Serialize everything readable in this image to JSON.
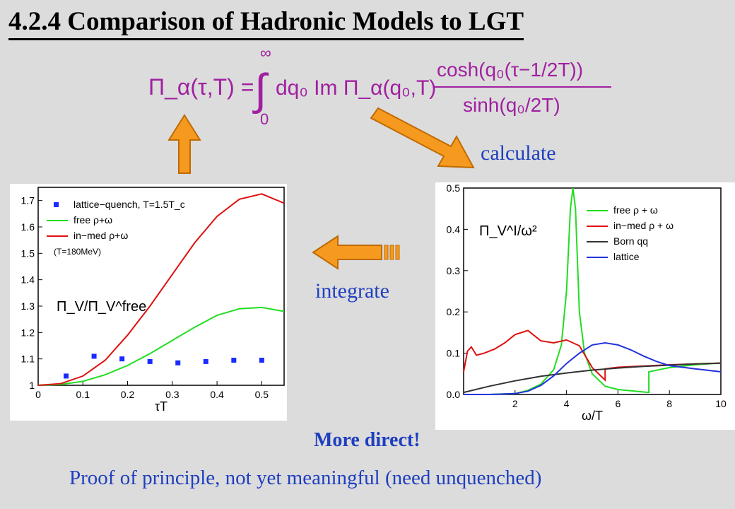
{
  "title": "4.2.4 Comparison of Hadronic Models to LGT",
  "formula": {
    "lhs": "Π_α(τ,T) =",
    "integral_upper": "∞",
    "integral_lower": "0",
    "integrand": "dq₀ Im Π_α(q₀,T)",
    "numerator": "cosh(q₀(τ−1/2T))",
    "denominator": "sinh(q₀/2T)"
  },
  "labels": {
    "calculate": "calculate",
    "integrate": "integrate",
    "more_direct": "More direct!",
    "proof": "Proof of principle, not yet meaningful  (need unquenched)"
  },
  "colors": {
    "arrow": "#f59a1e",
    "accent_text": "#1f3fbf",
    "formula": "#a020a0"
  },
  "chart_data": [
    {
      "type": "line",
      "ylabel": "Π_V/Π_V^free",
      "xlabel": "τT",
      "xlim": [
        0,
        0.55
      ],
      "ylim": [
        1,
        1.75
      ],
      "xticks": [
        "0",
        "0.1",
        "0.2",
        "0.3",
        "0.4",
        "0.5"
      ],
      "xtick_values": [
        0,
        0.1,
        0.2,
        0.3,
        0.4,
        0.5
      ],
      "yticks": [
        "1",
        "1.1",
        "1.2",
        "1.3",
        "1.4",
        "1.5",
        "1.6",
        "1.7"
      ],
      "ytick_values": [
        1,
        1.1,
        1.2,
        1.3,
        1.4,
        1.5,
        1.6,
        1.7
      ],
      "legend": [
        "lattice−quench, T=1.5T_c",
        "free ρ+ω",
        "in−med ρ+ω"
      ],
      "legend_note": "(T=180MeV)",
      "series": [
        {
          "name": "lattice−quench, T=1.5T_c",
          "kind": "points",
          "color": "#1a2bff",
          "x": [
            0.0625,
            0.125,
            0.1875,
            0.25,
            0.3125,
            0.375,
            0.4375,
            0.5
          ],
          "y": [
            1.035,
            1.11,
            1.1,
            1.09,
            1.085,
            1.09,
            1.095,
            1.095
          ]
        },
        {
          "name": "free ρ+ω",
          "kind": "line",
          "color": "#22dd22",
          "x": [
            0,
            0.05,
            0.1,
            0.15,
            0.2,
            0.25,
            0.3,
            0.35,
            0.4,
            0.45,
            0.5,
            0.55
          ],
          "y": [
            1,
            1.003,
            1.015,
            1.04,
            1.075,
            1.12,
            1.17,
            1.22,
            1.265,
            1.29,
            1.295,
            1.28
          ]
        },
        {
          "name": "in−med ρ+ω",
          "kind": "line",
          "color": "#e01010",
          "x": [
            0,
            0.05,
            0.1,
            0.15,
            0.2,
            0.25,
            0.3,
            0.35,
            0.4,
            0.45,
            0.5,
            0.55
          ],
          "y": [
            1,
            1.006,
            1.035,
            1.095,
            1.19,
            1.3,
            1.42,
            1.54,
            1.64,
            1.705,
            1.725,
            1.69
          ]
        }
      ]
    },
    {
      "type": "line",
      "ylabel": "Π_V^I/ω²",
      "xlabel": "ω/T",
      "xlim": [
        0,
        10
      ],
      "ylim": [
        0,
        0.5
      ],
      "xticks": [
        "2",
        "4",
        "6",
        "8",
        "10"
      ],
      "xtick_values": [
        2,
        4,
        6,
        8,
        10
      ],
      "yticks": [
        "0.0",
        "0.1",
        "0.2",
        "0.3",
        "0.4",
        "0.5"
      ],
      "ytick_values": [
        0,
        0.1,
        0.2,
        0.3,
        0.4,
        0.5
      ],
      "legend": [
        "free ρ + ω",
        "in−med ρ + ω",
        "Born qq",
        "lattice"
      ],
      "series": [
        {
          "name": "free ρ + ω",
          "color": "#22dd22",
          "x": [
            0,
            1,
            2,
            2.5,
            3,
            3.5,
            3.8,
            4.0,
            4.15,
            4.25,
            4.35,
            4.5,
            4.7,
            5.0,
            5.5,
            6.0,
            7.0,
            7.2,
            7.2,
            8.0,
            9.0,
            10.0
          ],
          "y": [
            0,
            0,
            0.002,
            0.01,
            0.025,
            0.06,
            0.12,
            0.25,
            0.45,
            0.5,
            0.45,
            0.2,
            0.1,
            0.05,
            0.02,
            0.012,
            0.006,
            0.005,
            0.055,
            0.065,
            0.072,
            0.076
          ]
        },
        {
          "name": "in−med ρ + ω",
          "color": "#e01010",
          "x": [
            0,
            0.15,
            0.3,
            0.5,
            0.8,
            1.2,
            1.6,
            2.0,
            2.5,
            3.0,
            3.5,
            4.0,
            4.5,
            5.0,
            5.5,
            5.5,
            6.0,
            7.0,
            8.0,
            9.0,
            10.0
          ],
          "y": [
            0.055,
            0.105,
            0.115,
            0.095,
            0.1,
            0.11,
            0.125,
            0.145,
            0.155,
            0.13,
            0.125,
            0.132,
            0.118,
            0.065,
            0.035,
            0.062,
            0.066,
            0.069,
            0.072,
            0.074,
            0.076
          ]
        },
        {
          "name": "Born qq",
          "color": "#333333",
          "x": [
            0,
            1,
            2,
            3,
            4,
            5,
            6,
            7,
            8,
            9,
            10
          ],
          "y": [
            0.005,
            0.02,
            0.033,
            0.044,
            0.052,
            0.059,
            0.064,
            0.068,
            0.071,
            0.074,
            0.076
          ]
        },
        {
          "name": "lattice",
          "color": "#2233dd",
          "x": [
            0,
            1,
            2,
            2.5,
            3,
            3.5,
            4,
            4.5,
            5,
            5.5,
            6,
            6.5,
            7,
            7.5,
            8,
            9,
            10
          ],
          "y": [
            0,
            0,
            0.002,
            0.008,
            0.022,
            0.045,
            0.075,
            0.1,
            0.12,
            0.125,
            0.12,
            0.108,
            0.093,
            0.08,
            0.07,
            0.062,
            0.055
          ]
        }
      ]
    }
  ]
}
